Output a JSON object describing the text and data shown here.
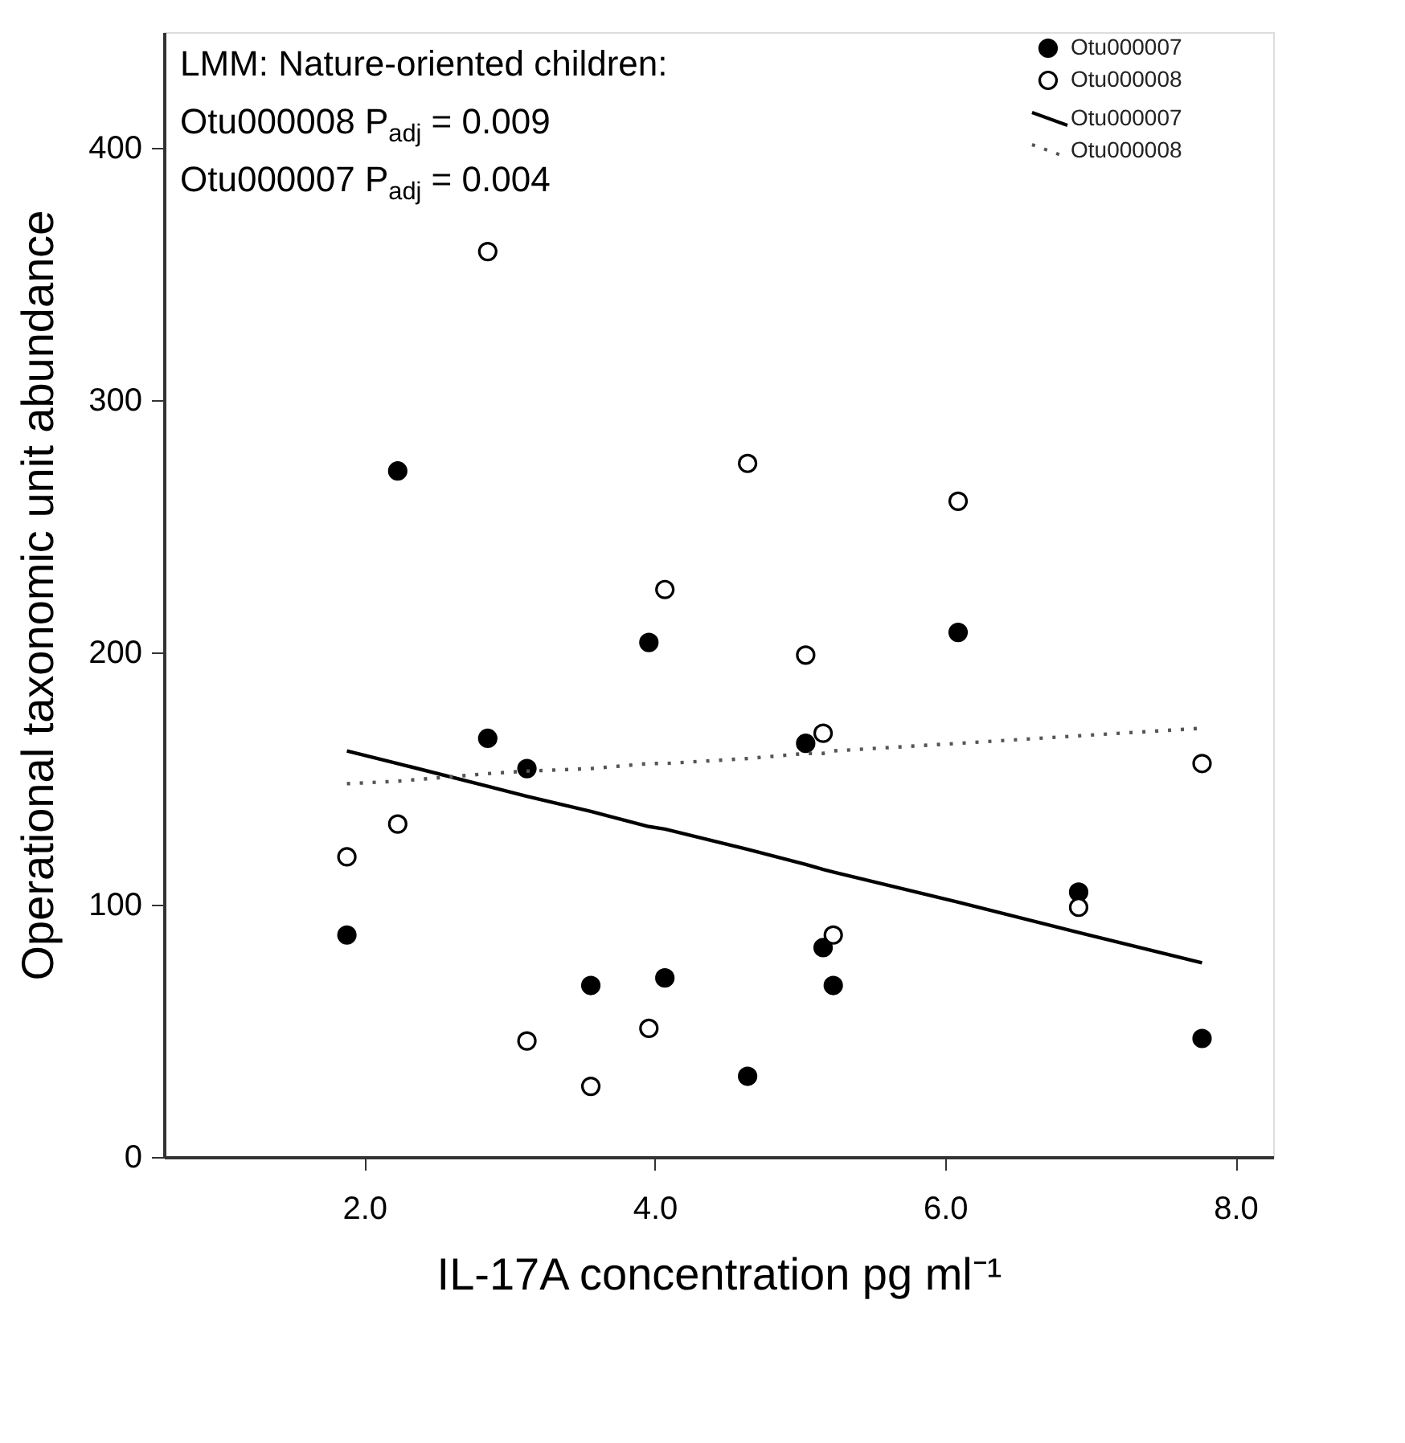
{
  "chart_data": {
    "type": "scatter",
    "xlabel": "IL-17A concentration pg ml⁻¹",
    "ylabel": "Operational taxonomic unit abundance",
    "annotations": [
      "LMM: Nature-oriented children:",
      "Otu000008 P$_{adj}$ = 0.009",
      "Otu000007 P$_{adj}$ = 0.004"
    ],
    "x": [
      1.88,
      2.23,
      2.85,
      3.12,
      3.56,
      3.96,
      4.07,
      4.64,
      5.04,
      5.16,
      5.23,
      6.09,
      6.92,
      7.77
    ],
    "series": [
      {
        "name": "Otu000007",
        "color": "#000000",
        "values": [
          88,
          272,
          166,
          154,
          68,
          204,
          71,
          32,
          164,
          83,
          68,
          208,
          105,
          47
        ]
      },
      {
        "name": "Otu000008",
        "color": "#ffffff",
        "values": [
          119,
          132,
          359,
          46,
          28,
          51,
          225,
          275,
          199,
          168,
          88,
          260,
          99,
          156
        ]
      },
      {
        "name": "Otu000007",
        "type": "line",
        "color": "#000000",
        "line_style": "solid",
        "marker": "none",
        "values": [
          161,
          156,
          147,
          143,
          137,
          131,
          130,
          122,
          116,
          114,
          113,
          101,
          89,
          77
        ]
      },
      {
        "name": "Otu000008",
        "type": "line",
        "color": "#555555",
        "line_style": "dotted",
        "marker": "none",
        "values": [
          148,
          149,
          152,
          153,
          154,
          156,
          156,
          158,
          160,
          160,
          161,
          164,
          167,
          170
        ]
      }
    ],
    "xlim": [
      0.62,
      8.26
    ],
    "ylim": [
      0,
      446
    ],
    "xticks": [
      {
        "value": 2,
        "label": "2.0"
      },
      {
        "value": 4,
        "label": "4.0"
      },
      {
        "value": 6,
        "label": "6.0"
      },
      {
        "value": 8,
        "label": "8.0"
      }
    ],
    "yticks": [
      0,
      100,
      200,
      300,
      400
    ],
    "marker": "circle",
    "grid": false,
    "legend": "top right"
  }
}
